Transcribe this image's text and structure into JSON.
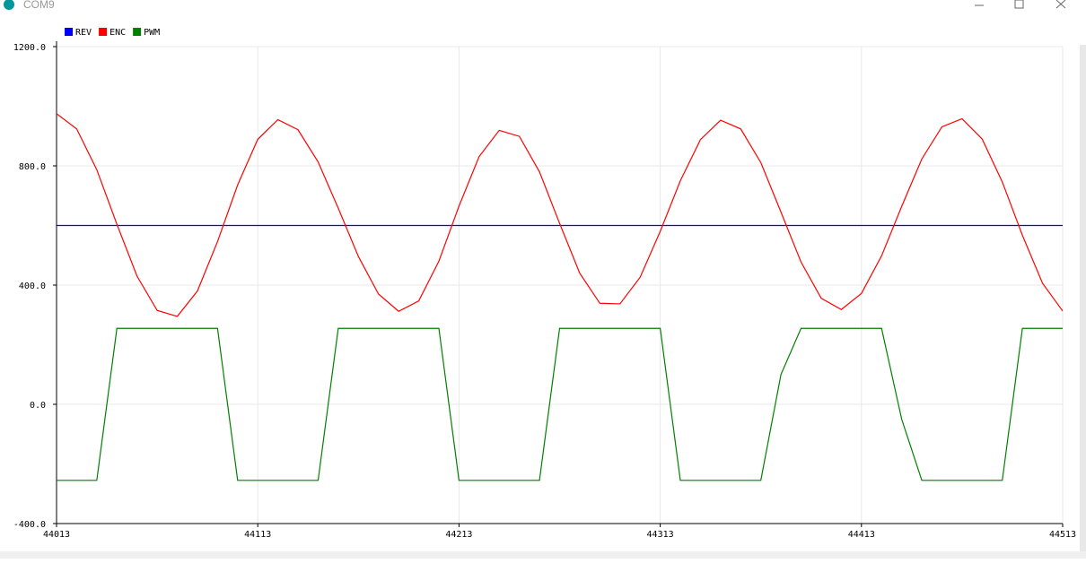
{
  "window": {
    "title": "COM9"
  },
  "chart_data": {
    "type": "line",
    "x": [
      44013,
      44023,
      44033,
      44043,
      44053,
      44063,
      44073,
      44083,
      44093,
      44103,
      44113,
      44123,
      44133,
      44143,
      44153,
      44163,
      44173,
      44183,
      44193,
      44203,
      44213,
      44223,
      44233,
      44243,
      44253,
      44263,
      44273,
      44283,
      44293,
      44303,
      44313,
      44323,
      44333,
      44343,
      44353,
      44363,
      44373,
      44383,
      44393,
      44403,
      44413,
      44423,
      44433,
      44443,
      44453,
      44463,
      44473,
      44483,
      44493,
      44503,
      44513
    ],
    "series": [
      {
        "name": "REV",
        "color": "#0000ff",
        "values": [
          600,
          600,
          600,
          600,
          600,
          600,
          600,
          600,
          600,
          600,
          600,
          600,
          600,
          600,
          600,
          600,
          600,
          600,
          600,
          600,
          600,
          600,
          600,
          600,
          600,
          600,
          600,
          600,
          600,
          600,
          600,
          600,
          600,
          600,
          600,
          600,
          600,
          600,
          600,
          600,
          600,
          600,
          600,
          600,
          600,
          600,
          600,
          600,
          600,
          600,
          600
        ]
      },
      {
        "name": "ENC",
        "color": "#ff0000",
        "values": [
          975,
          924,
          787,
          604,
          430,
          315,
          295,
          380,
          546,
          736,
          889,
          955,
          921,
          813,
          658,
          496,
          370,
          312,
          347,
          480,
          665,
          831,
          919,
          899,
          780,
          607,
          440,
          339,
          337,
          426,
          580,
          750,
          888,
          953,
          924,
          811,
          645,
          477,
          356,
          318,
          372,
          498,
          664,
          823,
          931,
          958,
          890,
          746,
          567,
          406,
          313
        ]
      },
      {
        "name": "PWM",
        "color": "#008000",
        "values": [
          -255,
          -255,
          -255,
          255,
          255,
          255,
          255,
          255,
          255,
          -255,
          -255,
          -255,
          -255,
          -255,
          255,
          255,
          255,
          255,
          255,
          255,
          -255,
          -255,
          -255,
          -255,
          -255,
          255,
          255,
          255,
          255,
          255,
          255,
          -255,
          -255,
          -255,
          -255,
          -255,
          100,
          255,
          255,
          255,
          255,
          255,
          -50,
          -255,
          -255,
          -255,
          -255,
          -255,
          255,
          255,
          255
        ]
      }
    ],
    "xlim": [
      44013,
      44513
    ],
    "xticks": [
      44013,
      44113,
      44213,
      44313,
      44413,
      44513
    ],
    "ylim": [
      -400,
      1200
    ],
    "yticks": [
      {
        "value": -400,
        "label": "-400.0"
      },
      {
        "value": 0,
        "label": "0.0"
      },
      {
        "value": 400,
        "label": "400.0"
      },
      {
        "value": 800,
        "label": "800.0"
      },
      {
        "value": 1200,
        "label": "1200.0"
      }
    ],
    "grid": true,
    "legend": "top-left"
  }
}
